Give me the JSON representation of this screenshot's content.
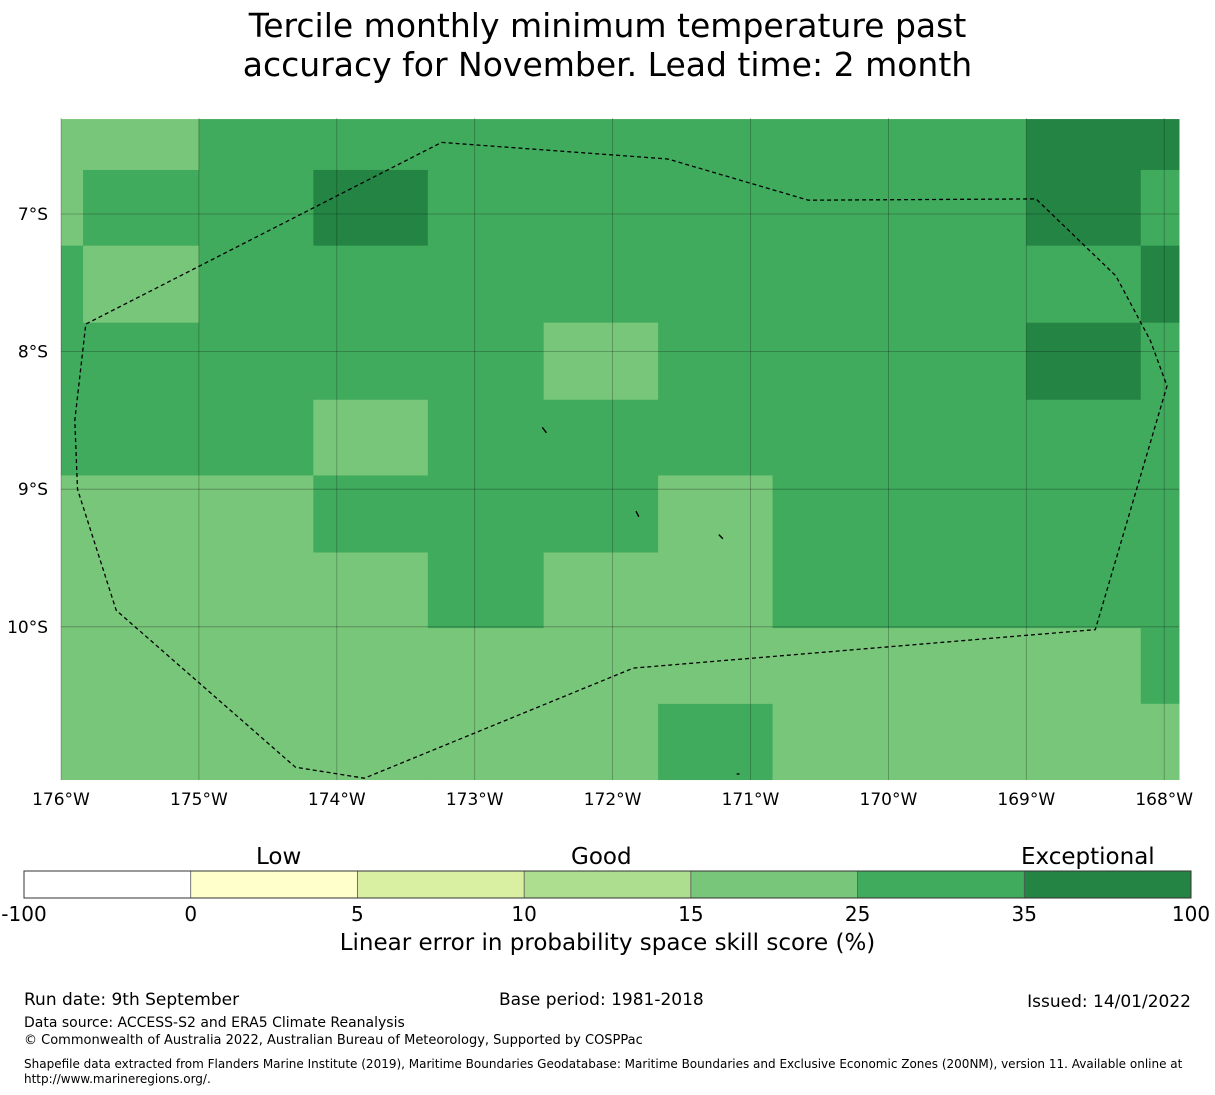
{
  "title": {
    "line1": "Tercile monthly minimum temperature past",
    "line2": "accuracy for November. Lead time: 2 month"
  },
  "map": {
    "lon_labels": [
      "176°W",
      "175°W",
      "174°W",
      "173°W",
      "172°W",
      "171°W",
      "170°W",
      "169°W",
      "168°W"
    ],
    "lat_labels": [
      "7°S",
      "8°S",
      "9°S",
      "10°S"
    ],
    "grid_cells": {
      "lon_edges": [
        -176.0,
        -175.84,
        -175.0,
        -174.17,
        -173.34,
        -172.5,
        -171.67,
        -170.84,
        -170.0,
        -169.0,
        -168.17,
        -167.73
      ],
      "lat_edges": [
        -6.31,
        -6.68,
        -7.23,
        -7.79,
        -8.35,
        -8.9,
        -9.46,
        -10.01,
        -10.56,
        -11.11
      ],
      "colors": {
        "a": "#78c679",
        "b": "#41ab5d",
        "c": "#238443"
      },
      "rows": [
        "aabbbbbbbcc",
        "abbcbbbbbcb",
        "babbbbbbbbc",
        "bbbbbabbbcb",
        "bbbabbbbbbb",
        "aaabbbabbbb",
        "aaaabaabbbb",
        "aaaaaaaaaab",
        "aaaaaabaaaa"
      ]
    },
    "eez_boundary_lonlat": [
      [
        -173.24,
        -6.48
      ],
      [
        -171.6,
        -6.6
      ],
      [
        -170.58,
        -6.9
      ],
      [
        -168.93,
        -6.89
      ],
      [
        -168.35,
        -7.45
      ],
      [
        -168.1,
        -7.92
      ],
      [
        -167.98,
        -8.25
      ],
      [
        -168.5,
        -10.02
      ],
      [
        -171.85,
        -10.3
      ],
      [
        -173.8,
        -11.1
      ],
      [
        -174.3,
        -11.02
      ],
      [
        -175.6,
        -9.88
      ],
      [
        -175.88,
        -9.0
      ],
      [
        -175.9,
        -8.5
      ],
      [
        -175.82,
        -7.8
      ]
    ],
    "islands_lonlat": [
      [
        [
          -172.51,
          -8.55
        ],
        [
          -172.48,
          -8.59
        ]
      ],
      [
        [
          -171.83,
          -9.16
        ],
        [
          -171.81,
          -9.2
        ]
      ],
      [
        [
          -171.23,
          -9.33
        ],
        [
          -171.2,
          -9.36
        ]
      ],
      [
        [
          -171.1,
          -11.07
        ],
        [
          -171.08,
          -11.07
        ]
      ]
    ]
  },
  "colorbar": {
    "colors": [
      "#ffffff",
      "#ffffcc",
      "#d9f0a3",
      "#addd8e",
      "#78c679",
      "#41ab5d",
      "#238443"
    ],
    "tick_labels": [
      "-100",
      "0",
      "5",
      "10",
      "15",
      "25",
      "35",
      "100"
    ],
    "categories": [
      "Low",
      "Good",
      "Exceptional"
    ],
    "label": "Linear error in probability space skill score (%)"
  },
  "footer": {
    "run_date": "Run date: 9th September",
    "base_period": "Base period: 1981-2018",
    "issued": "Issued: 14/01/2022",
    "data_source": "Data source: ACCESS-S2 and ERA5 Climate Reanalysis",
    "copyright": "© Commonwealth of Australia 2022, Australian Bureau of Meteorology, Supported by COSPPac",
    "shapefile": "Shapefile data extracted from Flanders Marine Institute (2019), Maritime Boundaries Geodatabase: Maritime Boundaries and Exclusive Economic Zones (200NM), version 11. Available online at http://www.marineregions.org/."
  }
}
